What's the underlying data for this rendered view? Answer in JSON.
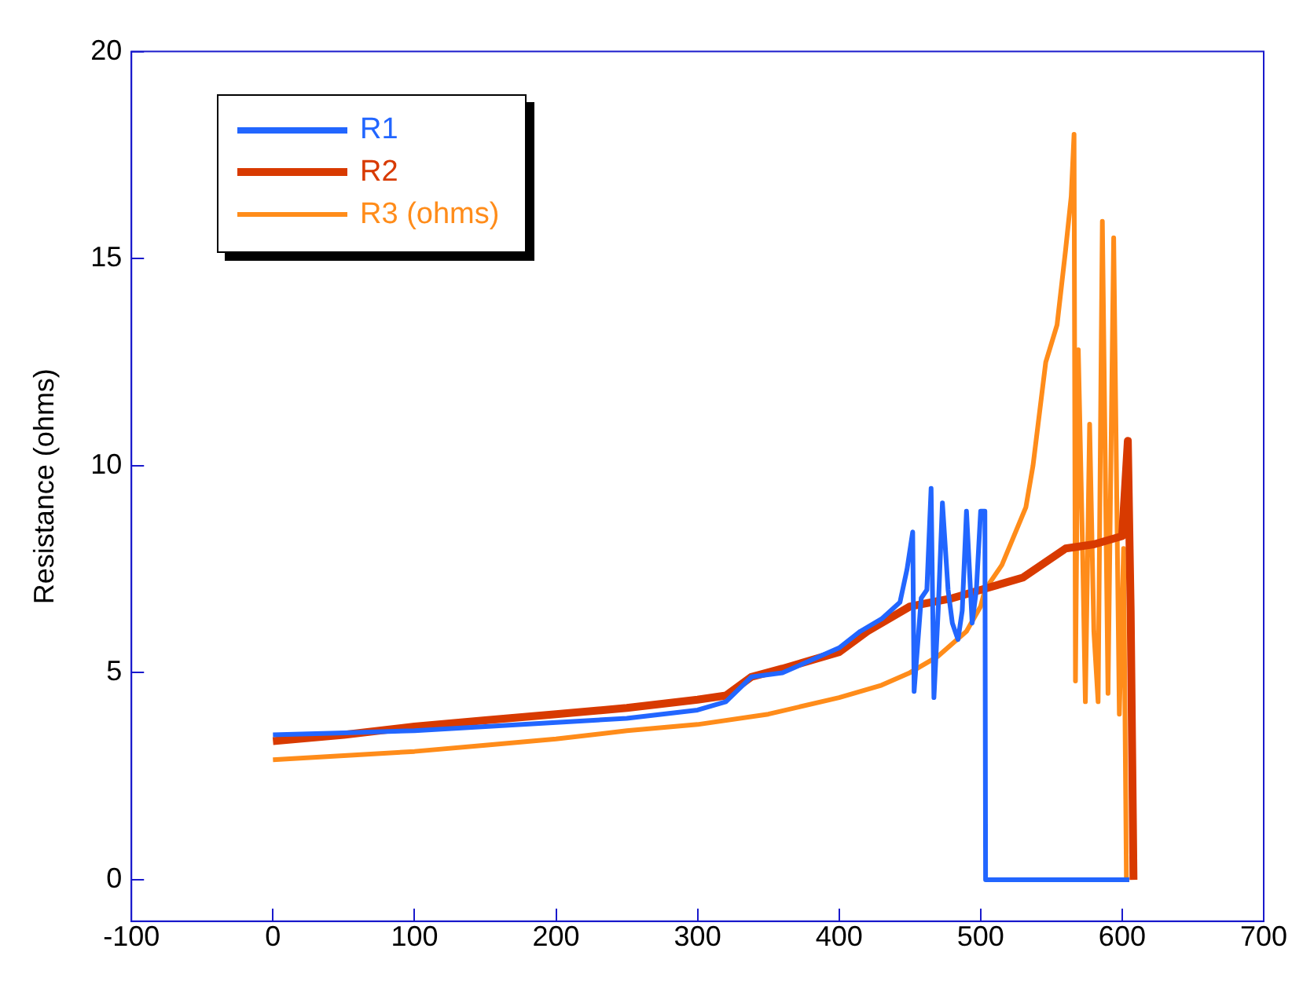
{
  "chart_data": {
    "type": "line",
    "ylabel": "Resistance (ohms)",
    "xlim": [
      -100,
      700
    ],
    "xticks": [
      -100,
      0,
      100,
      200,
      300,
      400,
      500,
      600,
      700
    ],
    "ylim": [
      -1,
      20
    ],
    "yticks": [
      0,
      5,
      10,
      15,
      20
    ],
    "grid": false,
    "legend": "top left",
    "marker": "none",
    "line_style": "solid",
    "series": [
      {
        "name": "R1",
        "color": "#2266ff",
        "x": [
          0,
          50,
          100,
          150,
          200,
          250,
          300,
          320,
          338,
          360,
          400,
          415,
          430,
          443,
          448,
          452,
          453,
          458,
          462,
          465,
          467,
          470,
          473,
          477,
          480,
          484,
          487,
          490,
          494,
          497,
          500,
          503,
          503.5,
          605
        ],
        "values": [
          3.5,
          3.55,
          3.6,
          3.7,
          3.8,
          3.9,
          4.1,
          4.3,
          4.9,
          5.0,
          5.6,
          6.0,
          6.3,
          6.7,
          7.5,
          8.4,
          4.55,
          6.8,
          7.0,
          9.45,
          4.4,
          6.5,
          9.1,
          7.0,
          6.2,
          5.8,
          6.5,
          8.9,
          6.2,
          7.0,
          8.9,
          8.9,
          0,
          0
        ]
      },
      {
        "name": "R2",
        "color": "#d83a00",
        "x": [
          0,
          50,
          100,
          150,
          200,
          250,
          300,
          320,
          338,
          360,
          400,
          420,
          450,
          480,
          500,
          530,
          560,
          580,
          600,
          604,
          606,
          608
        ],
        "values": [
          3.35,
          3.5,
          3.7,
          3.85,
          4.0,
          4.15,
          4.35,
          4.45,
          4.9,
          5.1,
          5.5,
          6.0,
          6.6,
          6.8,
          7.0,
          7.3,
          8.0,
          8.1,
          8.3,
          10.6,
          6.5,
          0
        ]
      },
      {
        "name": "R3 (ohms)",
        "color": "#ff8c1a",
        "x": [
          0,
          50,
          100,
          150,
          200,
          250,
          300,
          350,
          400,
          430,
          450,
          470,
          490,
          500,
          503,
          515,
          532,
          537,
          546,
          554,
          560,
          564,
          566,
          567,
          569,
          572,
          574,
          577,
          580,
          583,
          586,
          590,
          594,
          598,
          601,
          603,
          605
        ],
        "values": [
          2.9,
          3.0,
          3.1,
          3.25,
          3.4,
          3.6,
          3.75,
          4.0,
          4.4,
          4.7,
          5.0,
          5.4,
          6.0,
          6.6,
          7.0,
          7.6,
          9.0,
          10.0,
          12.5,
          13.4,
          15.2,
          16.5,
          18.0,
          4.8,
          12.8,
          8.0,
          4.3,
          11.0,
          6.0,
          4.3,
          15.9,
          4.5,
          15.5,
          4.0,
          8.0,
          0,
          0
        ]
      }
    ]
  }
}
